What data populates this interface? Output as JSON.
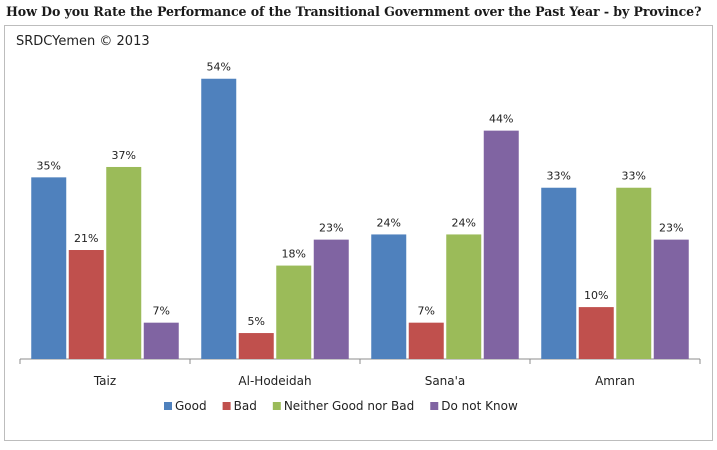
{
  "title": "How Do you Rate the Performance of the Transitional Government over the Past Year - by Province?",
  "source": "SRDCYemen © 2013",
  "chart_data": {
    "type": "bar",
    "categories": [
      "Taiz",
      "Al-Hodeidah",
      "Sana'a",
      "Amran"
    ],
    "series": [
      {
        "name": "Good",
        "color": "#4F81BD",
        "values": [
          35,
          54,
          24,
          33
        ]
      },
      {
        "name": "Bad",
        "color": "#C0504D",
        "values": [
          21,
          5,
          7,
          10
        ]
      },
      {
        "name": "Neither Good nor Bad",
        "color": "#9BBB59",
        "values": [
          37,
          18,
          24,
          33
        ]
      },
      {
        "name": "Do not Know",
        "color": "#8064A2",
        "values": [
          7,
          23,
          44,
          23
        ]
      }
    ],
    "value_suffix": "%",
    "ylim": [
      0,
      60
    ],
    "grid": false,
    "legend": "bottom"
  }
}
